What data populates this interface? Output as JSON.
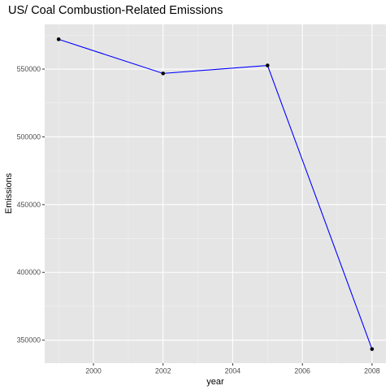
{
  "chart_data": {
    "type": "line",
    "title": "US/ Coal Combustion-Related Emissions",
    "xlabel": "year",
    "ylabel": "Emissions",
    "x": [
      1999,
      2002,
      2005,
      2008
    ],
    "series": [
      {
        "values": [
          572000,
          546800,
          552700,
          343400
        ]
      }
    ],
    "xlim": [
      1998.6,
      2008.4
    ],
    "ylim": [
      333000,
      583000
    ],
    "x_ticks": [
      2000,
      2002,
      2004,
      2006,
      2008
    ],
    "x_tick_labels": [
      "2000",
      "2002",
      "2004",
      "2006",
      "2008"
    ],
    "y_ticks": [
      350000,
      400000,
      450000,
      500000,
      550000
    ],
    "y_tick_labels": [
      "350000",
      "400000",
      "450000",
      "500000",
      "550000"
    ],
    "grid": true,
    "legend": "none",
    "colors": {
      "panel_background": "#e5e5e5",
      "grid_major": "#ffffff",
      "grid_minor": "#f2f2f2",
      "line": "#0000ff",
      "point": "#000000",
      "text": "#000000",
      "tick_label": "#4d4d4d",
      "tick_mark": "#333333"
    }
  }
}
